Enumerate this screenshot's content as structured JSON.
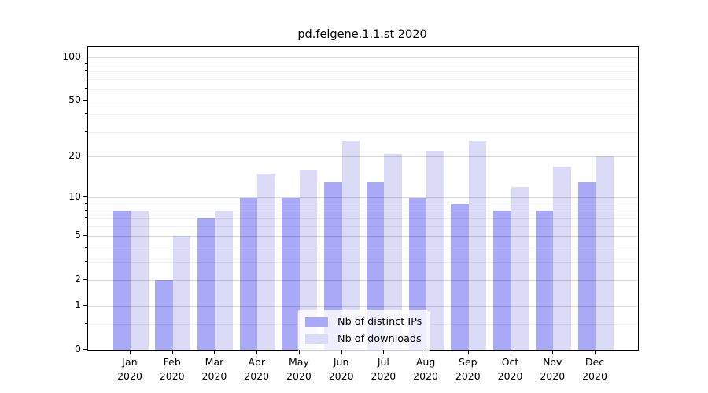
{
  "title": "pd.felgene.1.1.st 2020",
  "colors": {
    "ips": "#a9a9f7",
    "downloads": "#dbdbf8",
    "axis": "#000000",
    "grid_major": "rgba(0,0,0,0.145)",
    "grid_minor": "rgba(0,0,0,0.06)"
  },
  "legend": {
    "items": [
      {
        "label": "Nb of distinct IPs",
        "color_key": "ips"
      },
      {
        "label": "Nb of downloads",
        "color_key": "downloads"
      }
    ]
  },
  "chart_data": {
    "type": "bar",
    "title": "pd.felgene.1.1.st 2020",
    "xlabel": "",
    "ylabel": "",
    "categories": [
      "Jan 2020",
      "Feb 2020",
      "Mar 2020",
      "Apr 2020",
      "May 2020",
      "Jun 2020",
      "Jul 2020",
      "Aug 2020",
      "Sep 2020",
      "Oct 2020",
      "Nov 2020",
      "Dec 2020"
    ],
    "series": [
      {
        "name": "Nb of distinct IPs",
        "values": [
          8,
          2,
          7,
          10,
          10,
          13,
          13,
          10,
          9,
          8,
          8,
          13
        ]
      },
      {
        "name": "Nb of downloads",
        "values": [
          8,
          5,
          8,
          15,
          16,
          26,
          21,
          22,
          26,
          12,
          17,
          20
        ]
      }
    ],
    "yscale": "log(value+1)",
    "y_ticks": [
      0,
      1,
      2,
      5,
      10,
      20,
      50,
      100
    ],
    "y_minor_ticks": [
      0.5,
      3,
      4,
      6,
      7,
      8,
      9,
      30,
      40,
      60,
      70,
      80,
      90
    ],
    "ylim": [
      0,
      117
    ],
    "grid": true,
    "legend_position": "lower center"
  }
}
